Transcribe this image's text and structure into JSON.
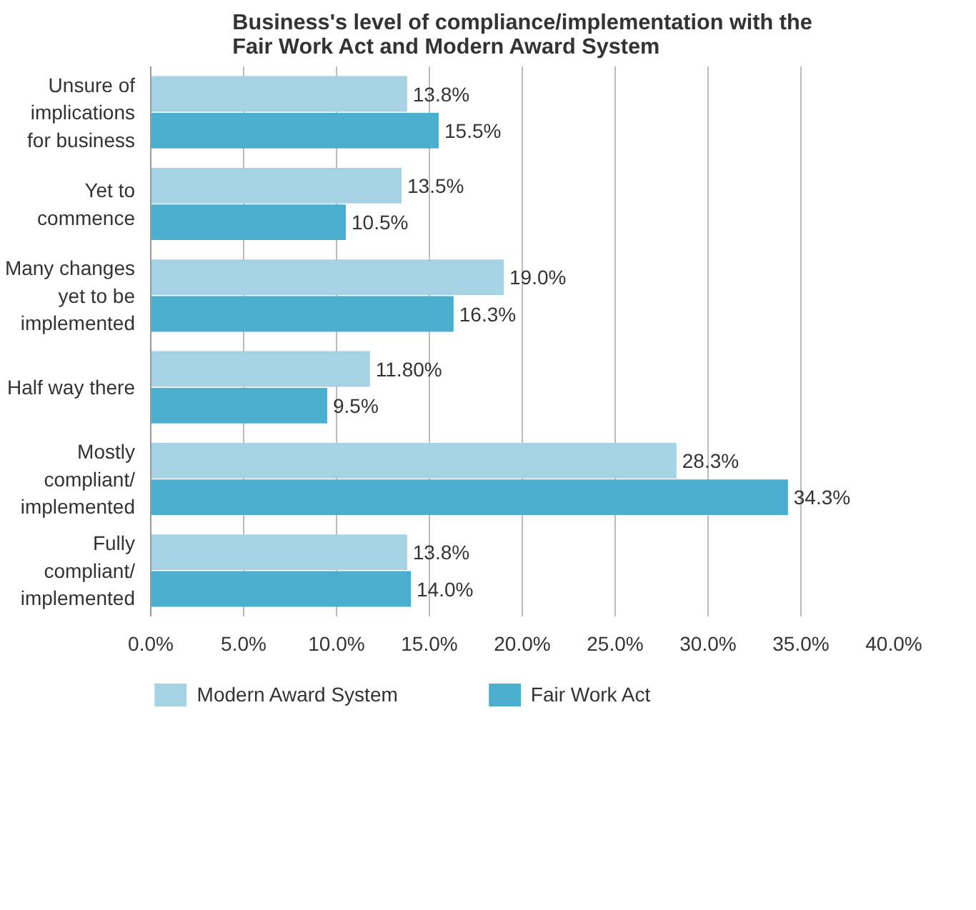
{
  "chart_data": {
    "type": "bar",
    "orientation": "horizontal",
    "title": "Business's level of compliance/implementation with the\nFair Work Act and Modern Award System",
    "categories": [
      "Unsure of\nimplications\nfor business",
      "Yet to\ncommence",
      "Many changes\nyet to be\nimplemented",
      "Half way there",
      "Mostly\ncompliant/\nimplemented",
      "Fully\ncompliant/\nimplemented"
    ],
    "series": [
      {
        "name": "Modern Award System",
        "color": "#a6d3e3",
        "values": [
          13.8,
          13.5,
          19.0,
          11.8,
          28.3,
          13.8
        ],
        "value_labels": [
          "13.8%",
          "13.5%",
          "19.0%",
          "11.80%",
          "28.3%",
          "13.8%"
        ]
      },
      {
        "name": "Fair Work Act",
        "color": "#4baecf",
        "values": [
          15.5,
          10.5,
          16.3,
          9.5,
          34.3,
          14.0
        ],
        "value_labels": [
          "15.5%",
          "10.5%",
          "16.3%",
          "9.5%",
          "34.3%",
          "14.0%"
        ]
      }
    ],
    "xlim": [
      0,
      40
    ],
    "xticks": [
      {
        "value": 0,
        "label": "0.0%"
      },
      {
        "value": 5,
        "label": "5.0%"
      },
      {
        "value": 10,
        "label": "10.0%"
      },
      {
        "value": 15,
        "label": "15.0%"
      },
      {
        "value": 20,
        "label": "20.0%"
      },
      {
        "value": 25,
        "label": "25.0%"
      },
      {
        "value": 30,
        "label": "30.0%"
      },
      {
        "value": 35,
        "label": "35.0%"
      },
      {
        "value": 40,
        "label": "40.0%"
      }
    ],
    "grid": "x",
    "legend": "bottom"
  }
}
